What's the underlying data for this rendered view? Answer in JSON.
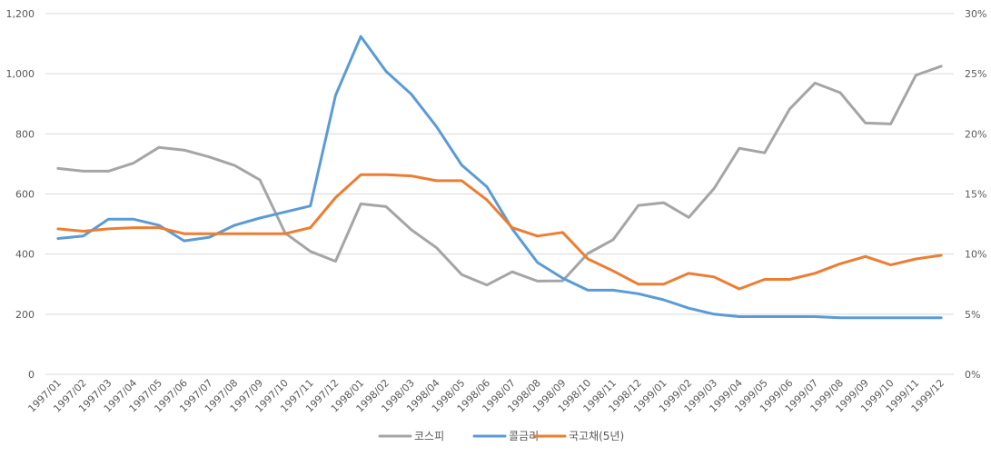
{
  "chart_data": {
    "type": "line",
    "x": [
      "1997/01",
      "1997/02",
      "1997/03",
      "1997/04",
      "1997/05",
      "1997/06",
      "1997/07",
      "1997/08",
      "1997/09",
      "1997/10",
      "1997/11",
      "1997/12",
      "1998/01",
      "1998/02",
      "1998/03",
      "1998/04",
      "1998/05",
      "1998/06",
      "1998/07",
      "1998/08",
      "1998/09",
      "1998/10",
      "1998/11",
      "1998/12",
      "1999/01",
      "1999/02",
      "1999/03",
      "1999/04",
      "1999/05",
      "1999/06",
      "1999/07",
      "1999/08",
      "1999/09",
      "1999/10",
      "1999/11",
      "1999/12"
    ],
    "series": [
      {
        "name": "코스피",
        "axis": "left",
        "color": "#a5a5a5",
        "values": [
          685,
          676,
          676,
          703,
          755,
          746,
          723,
          695,
          647,
          470,
          409,
          376,
          567,
          558,
          481,
          421,
          332,
          297,
          341,
          310,
          311,
          402,
          448,
          562,
          571,
          522,
          618,
          752,
          737,
          883,
          969,
          937,
          836,
          833,
          995,
          1025
        ]
      },
      {
        "name": "콜금리",
        "axis": "right",
        "color": "#5b9bd5",
        "values": [
          11.3,
          11.5,
          12.9,
          12.9,
          12.4,
          11.1,
          11.4,
          12.4,
          13.0,
          13.5,
          14.0,
          23.2,
          28.1,
          25.2,
          23.3,
          20.6,
          17.4,
          15.6,
          12.1,
          9.3,
          8.0,
          7.0,
          7.0,
          6.7,
          6.2,
          5.5,
          5.0,
          4.8,
          4.8,
          4.8,
          4.8,
          4.7,
          4.7,
          4.7,
          4.7,
          4.7
        ]
      },
      {
        "name": "국고채(5년)",
        "axis": "right",
        "color": "#ed7d31",
        "values": [
          12.1,
          11.9,
          12.1,
          12.2,
          12.2,
          11.7,
          11.7,
          11.7,
          11.7,
          11.7,
          12.2,
          14.7,
          16.6,
          16.6,
          16.5,
          16.1,
          16.1,
          14.5,
          12.2,
          11.5,
          11.8,
          9.6,
          8.6,
          7.5,
          7.5,
          8.4,
          8.1,
          7.1,
          7.9,
          7.9,
          8.4,
          9.2,
          9.8,
          9.1,
          9.6,
          9.9
        ]
      }
    ],
    "y_left": {
      "ticks": [
        "0",
        "200",
        "400",
        "600",
        "800",
        "1,000",
        "1,200"
      ],
      "min": 0,
      "max": 1200
    },
    "y_right": {
      "ticks": [
        "0%",
        "5%",
        "10%",
        "15%",
        "20%",
        "25%",
        "30%"
      ],
      "min": 0,
      "max": 30
    },
    "grid": true,
    "legend_position": "bottom"
  }
}
